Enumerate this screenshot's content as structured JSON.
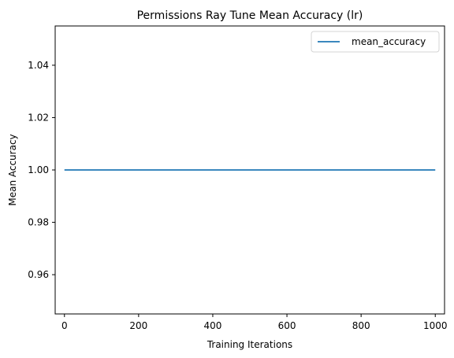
{
  "chart_data": {
    "type": "line",
    "title": "Permissions Ray Tune Mean Accuracy (lr)",
    "xlabel": "Training Iterations",
    "ylabel": "Mean Accuracy",
    "xlim": [
      -25,
      1025
    ],
    "ylim": [
      0.945,
      1.055
    ],
    "xticks": [
      0,
      200,
      400,
      600,
      800,
      1000
    ],
    "xtick_labels": [
      "0",
      "200",
      "400",
      "600",
      "800",
      "1000"
    ],
    "yticks": [
      0.96,
      0.98,
      1.0,
      1.02,
      1.04
    ],
    "ytick_labels": [
      "0.96",
      "0.98",
      "1.00",
      "1.02",
      "1.04"
    ],
    "grid": false,
    "legend_position": "top-right",
    "series": [
      {
        "name": "mean_accuracy",
        "color": "#1f77b4",
        "x": [
          0,
          1000
        ],
        "y": [
          1.0,
          1.0
        ]
      }
    ]
  }
}
